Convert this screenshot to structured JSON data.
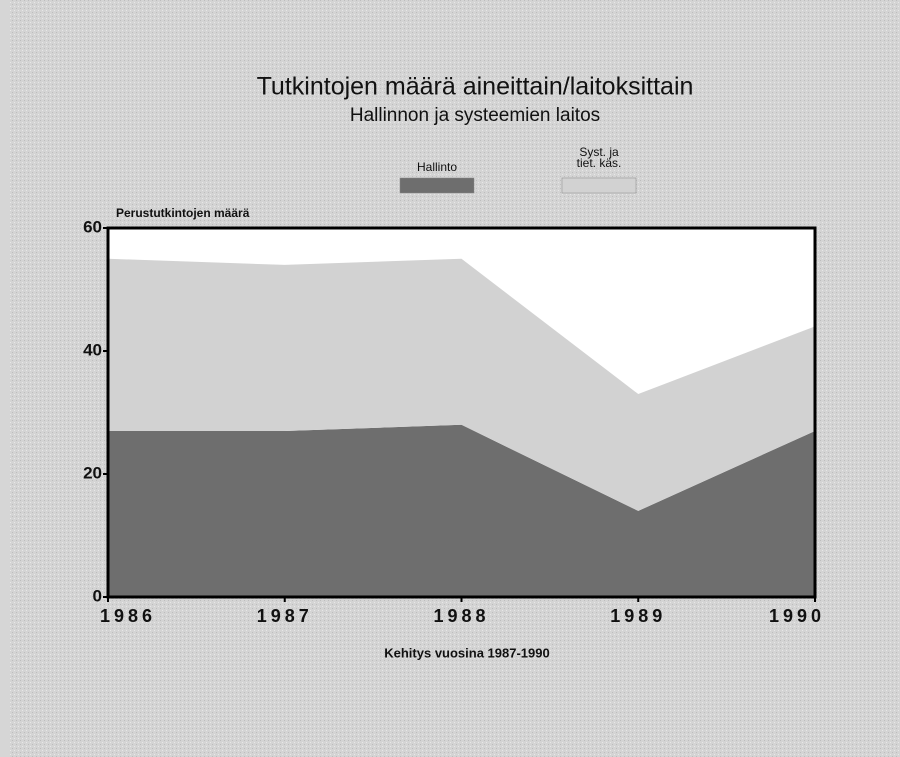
{
  "chart_data": {
    "type": "area",
    "stacked": true,
    "title": "Tutkintojen määrä aineittain/laitoksittain",
    "subtitle": "Hallinnon ja systeemien laitos",
    "y_label": "Perustutkintojen määrä",
    "x_label": "Kehitys vuosina 1987-1990",
    "x": [
      1986,
      1987,
      1988,
      1989,
      1990
    ],
    "xlim": [
      1986,
      1990
    ],
    "xticks": [
      1986,
      1987,
      1988,
      1989,
      1990
    ],
    "ylim": [
      0,
      60
    ],
    "yticks": [
      0,
      20,
      40,
      60
    ],
    "series": [
      {
        "name": "Hallinto",
        "color": "#6e6e6e",
        "values": [
          27,
          27,
          28,
          14,
          27
        ]
      },
      {
        "name": "Syst. ja tiet. käs.",
        "color": "#d2d2d2",
        "values": [
          28,
          27,
          27,
          19,
          17
        ]
      }
    ]
  }
}
